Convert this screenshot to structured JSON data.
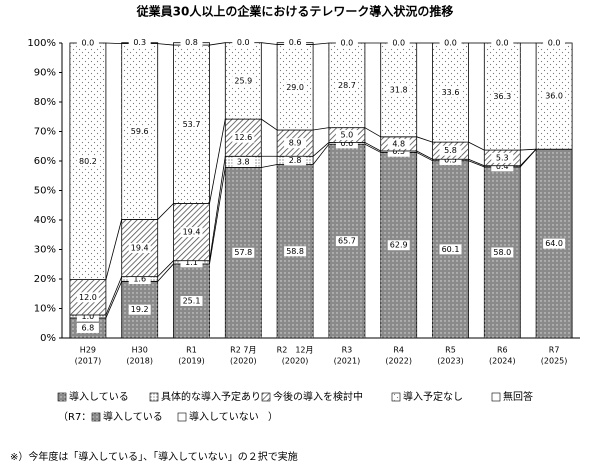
{
  "chart_data": {
    "type": "stacked_bar",
    "title": "従業員30人以上の企業におけるテレワーク導入状況の推移",
    "categories": [
      "H29",
      "H30",
      "R1",
      "R2 7月",
      "R2　12月",
      "R3",
      "R4",
      "R5",
      "R6",
      "R7"
    ],
    "category_years": [
      "(2017)",
      "(2018)",
      "(2019)",
      "(2020)",
      "(2020)",
      "(2021)",
      "(2022)",
      "(2023)",
      "(2024)",
      "(2025)"
    ],
    "series": [
      {
        "name": "導入している",
        "color": "#8a8a8a",
        "pattern": "dots-light",
        "values": [
          6.8,
          19.2,
          25.1,
          57.8,
          58.8,
          65.7,
          62.9,
          60.1,
          58.0,
          64.0
        ],
        "value_labels": [
          "6.8",
          "19.2",
          "25.1",
          "57.8",
          "58.8",
          "65.7",
          "62.9",
          "60.1",
          "58.0",
          "64.0"
        ]
      },
      {
        "name": "具体的な導入予定あり",
        "color": "#ffffff",
        "pattern": "dots-dark",
        "values": [
          1.0,
          1.6,
          1.1,
          3.8,
          2.8,
          0.6,
          0.5,
          0.5,
          0.4,
          null
        ],
        "value_labels": [
          "1.0",
          "1.6",
          "1.1",
          "3.8",
          "2.8",
          "0.6",
          "0.5",
          "0.5",
          "0.4",
          null
        ]
      },
      {
        "name": "今後の導入を検討中",
        "color": "#ffffff",
        "pattern": "hatch",
        "values": [
          12.0,
          19.4,
          19.4,
          12.6,
          8.9,
          5.0,
          4.8,
          5.8,
          5.3,
          null
        ],
        "value_labels": [
          "12.0",
          "19.4",
          "19.4",
          "12.6",
          "8.9",
          "5.0",
          "4.8",
          "5.8",
          "5.3",
          null
        ]
      },
      {
        "name": "導入予定なし",
        "color": "#ffffff",
        "pattern": "dots-sparse",
        "values": [
          80.2,
          59.6,
          53.7,
          25.9,
          29.0,
          28.7,
          31.8,
          33.6,
          36.3,
          36.0
        ],
        "value_labels": [
          "80.2",
          "59.6",
          "53.7",
          "25.9",
          "29.0",
          "28.7",
          "31.8",
          "33.6",
          "36.3",
          "36.0"
        ]
      },
      {
        "name": "無回答",
        "color": "#ffffff",
        "pattern": "none",
        "values": [
          0.0,
          0.3,
          0.8,
          0.0,
          0.6,
          0.0,
          0.0,
          0.0,
          0.0,
          0.0
        ],
        "value_labels": [
          "0.0",
          "0.3",
          "0.8",
          "0.0",
          "0.6",
          "0.0",
          "0.0",
          "0.0",
          "0.0",
          "0.0"
        ]
      }
    ],
    "ylim": [
      0,
      100
    ],
    "yticks": [
      {
        "value": 0,
        "label": "0%"
      },
      {
        "value": 10,
        "label": "10%"
      },
      {
        "value": 20,
        "label": "20%"
      },
      {
        "value": 30,
        "label": "30%"
      },
      {
        "value": 40,
        "label": "40%"
      },
      {
        "value": 50,
        "label": "50%"
      },
      {
        "value": 60,
        "label": "60%"
      },
      {
        "value": 70,
        "label": "70%"
      },
      {
        "value": 80,
        "label": "80%"
      },
      {
        "value": 90,
        "label": "90%"
      },
      {
        "value": 100,
        "label": "100%"
      }
    ],
    "r7_legend": {
      "prefix": "（R7：",
      "items": [
        "導入している",
        "導入していない"
      ],
      "suffix": "）"
    },
    "footnote": "※）今年度は「導入している」、「導入していない」の２択で実施"
  }
}
